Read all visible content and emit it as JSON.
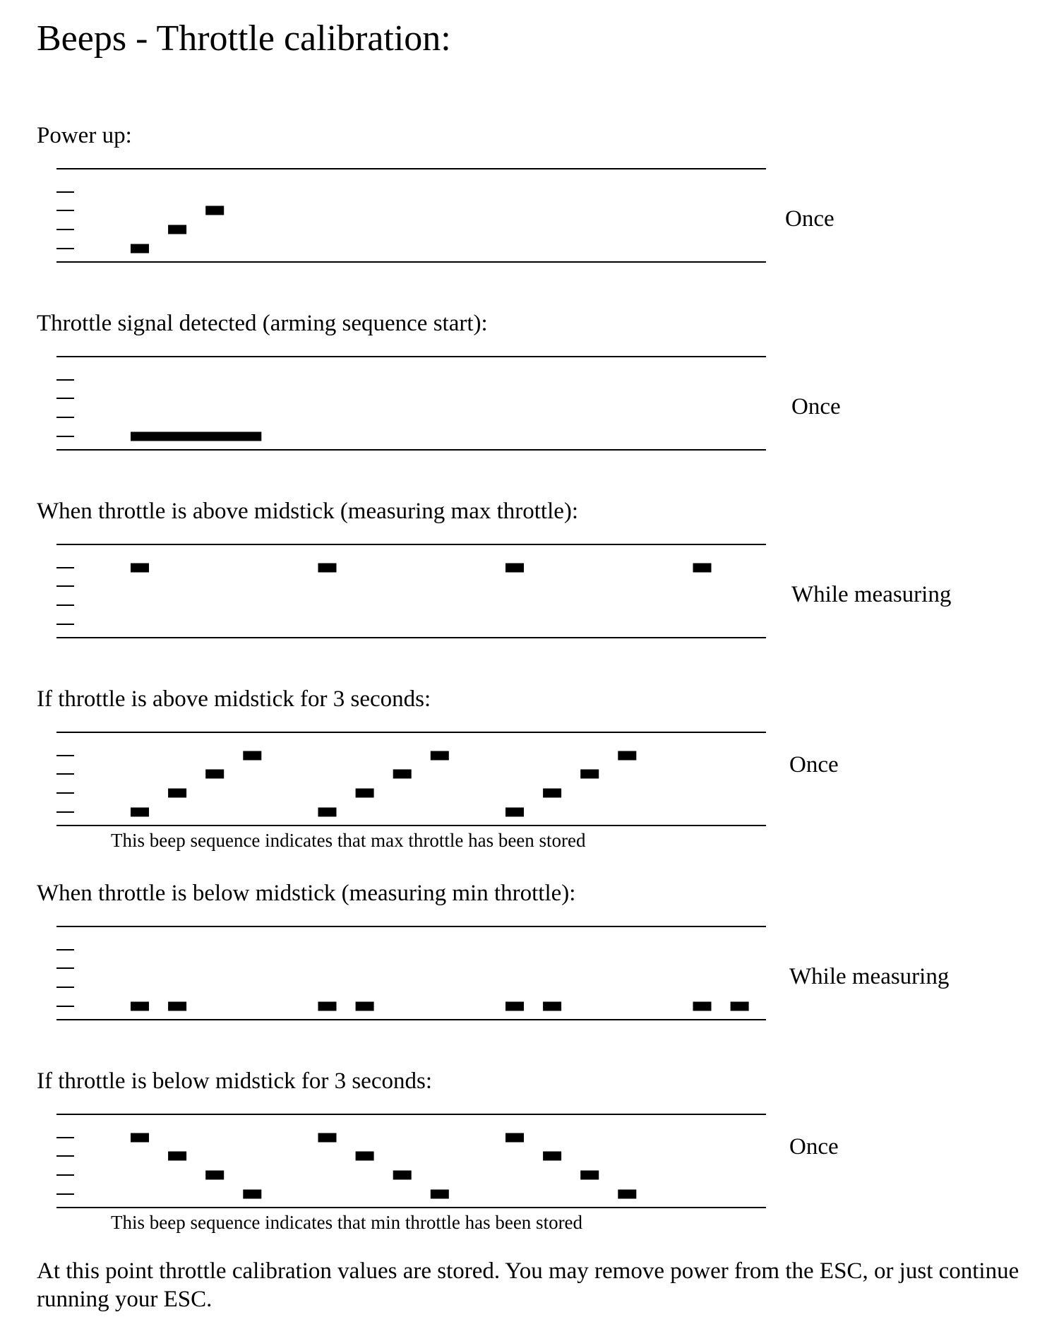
{
  "title": "Beeps - Throttle calibration:",
  "sections": [
    {
      "heading": "Power up:",
      "frequency": "Once",
      "note": "",
      "beeps": [
        {
          "step": 1,
          "pitch": 1,
          "length": 1
        },
        {
          "step": 2,
          "pitch": 2,
          "length": 1
        },
        {
          "step": 3,
          "pitch": 3,
          "length": 1
        }
      ]
    },
    {
      "heading": "Throttle signal detected (arming sequence start):",
      "frequency": "Once",
      "note": "",
      "beeps": [
        {
          "step": 1,
          "pitch": 1,
          "length": 4
        }
      ]
    },
    {
      "heading": "When throttle is above midstick (measuring max throttle):",
      "frequency": "While measuring",
      "note": "",
      "beeps": [
        {
          "step": 1,
          "pitch": 4,
          "length": 1
        },
        {
          "step": 6,
          "pitch": 4,
          "length": 1
        },
        {
          "step": 11,
          "pitch": 4,
          "length": 1
        },
        {
          "step": 16,
          "pitch": 4,
          "length": 1
        }
      ]
    },
    {
      "heading": "If throttle is above midstick for 3 seconds:",
      "frequency": "Once",
      "note": "This beep sequence indicates that max throttle has been stored",
      "beeps": [
        {
          "step": 1,
          "pitch": 1,
          "length": 1
        },
        {
          "step": 2,
          "pitch": 2,
          "length": 1
        },
        {
          "step": 3,
          "pitch": 3,
          "length": 1
        },
        {
          "step": 4,
          "pitch": 4,
          "length": 1
        },
        {
          "step": 6,
          "pitch": 1,
          "length": 1
        },
        {
          "step": 7,
          "pitch": 2,
          "length": 1
        },
        {
          "step": 8,
          "pitch": 3,
          "length": 1
        },
        {
          "step": 9,
          "pitch": 4,
          "length": 1
        },
        {
          "step": 11,
          "pitch": 1,
          "length": 1
        },
        {
          "step": 12,
          "pitch": 2,
          "length": 1
        },
        {
          "step": 13,
          "pitch": 3,
          "length": 1
        },
        {
          "step": 14,
          "pitch": 4,
          "length": 1
        }
      ]
    },
    {
      "heading": "When throttle is below midstick (measuring min throttle):",
      "frequency": "While measuring",
      "note": "",
      "beeps": [
        {
          "step": 1,
          "pitch": 1,
          "length": 1
        },
        {
          "step": 2,
          "pitch": 1,
          "length": 1
        },
        {
          "step": 6,
          "pitch": 1,
          "length": 1
        },
        {
          "step": 7,
          "pitch": 1,
          "length": 1
        },
        {
          "step": 11,
          "pitch": 1,
          "length": 1
        },
        {
          "step": 12,
          "pitch": 1,
          "length": 1
        },
        {
          "step": 16,
          "pitch": 1,
          "length": 1
        },
        {
          "step": 17,
          "pitch": 1,
          "length": 1
        }
      ]
    },
    {
      "heading": "If throttle is below midstick for 3 seconds:",
      "frequency": "Once",
      "note": "This beep sequence indicates that min throttle has been stored",
      "beeps": [
        {
          "step": 1,
          "pitch": 4,
          "length": 1
        },
        {
          "step": 2,
          "pitch": 3,
          "length": 1
        },
        {
          "step": 3,
          "pitch": 2,
          "length": 1
        },
        {
          "step": 4,
          "pitch": 1,
          "length": 1
        },
        {
          "step": 6,
          "pitch": 4,
          "length": 1
        },
        {
          "step": 7,
          "pitch": 3,
          "length": 1
        },
        {
          "step": 8,
          "pitch": 2,
          "length": 1
        },
        {
          "step": 9,
          "pitch": 1,
          "length": 1
        },
        {
          "step": 11,
          "pitch": 4,
          "length": 1
        },
        {
          "step": 12,
          "pitch": 3,
          "length": 1
        },
        {
          "step": 13,
          "pitch": 2,
          "length": 1
        },
        {
          "step": 14,
          "pitch": 1,
          "length": 1
        }
      ]
    }
  ],
  "conclusion": "At this point throttle calibration values are stored. You may remove power from the ESC, or just continue running your ESC."
}
